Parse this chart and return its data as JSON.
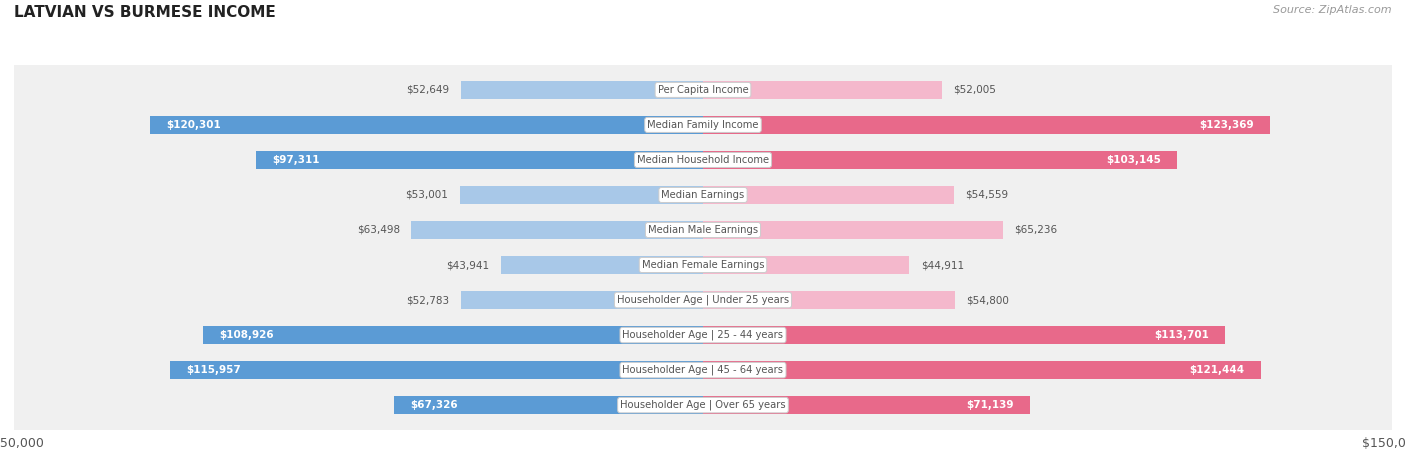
{
  "title": "LATVIAN VS BURMESE INCOME",
  "source": "Source: ZipAtlas.com",
  "categories": [
    "Per Capita Income",
    "Median Family Income",
    "Median Household Income",
    "Median Earnings",
    "Median Male Earnings",
    "Median Female Earnings",
    "Householder Age | Under 25 years",
    "Householder Age | 25 - 44 years",
    "Householder Age | 45 - 64 years",
    "Householder Age | Over 65 years"
  ],
  "latvian": [
    52649,
    120301,
    97311,
    53001,
    63498,
    43941,
    52783,
    108926,
    115957,
    67326
  ],
  "burmese": [
    52005,
    123369,
    103145,
    54559,
    65236,
    44911,
    54800,
    113701,
    121444,
    71139
  ],
  "latvian_labels": [
    "$52,649",
    "$120,301",
    "$97,311",
    "$53,001",
    "$63,498",
    "$43,941",
    "$52,783",
    "$108,926",
    "$115,957",
    "$67,326"
  ],
  "burmese_labels": [
    "$52,005",
    "$123,369",
    "$103,145",
    "$54,559",
    "$65,236",
    "$44,911",
    "$54,800",
    "$113,701",
    "$121,444",
    "$71,139"
  ],
  "max_val": 150000,
  "latvian_light_color": "#a8c8e8",
  "latvian_dark_color": "#5b9bd5",
  "burmese_light_color": "#f4b8cc",
  "burmese_dark_color": "#e8698a",
  "bg_color": "#ffffff",
  "row_bg_color": "#f0f0f0",
  "row_edge_color": "#d8d8d8",
  "title_color": "#222222",
  "source_color": "#999999",
  "label_dark_color": "#555555",
  "label_white_color": "#ffffff",
  "cat_label_color": "#555555",
  "legend_latvian_color": "#7ab5e0",
  "legend_burmese_color": "#f08aaa",
  "inside_threshold": 67000
}
